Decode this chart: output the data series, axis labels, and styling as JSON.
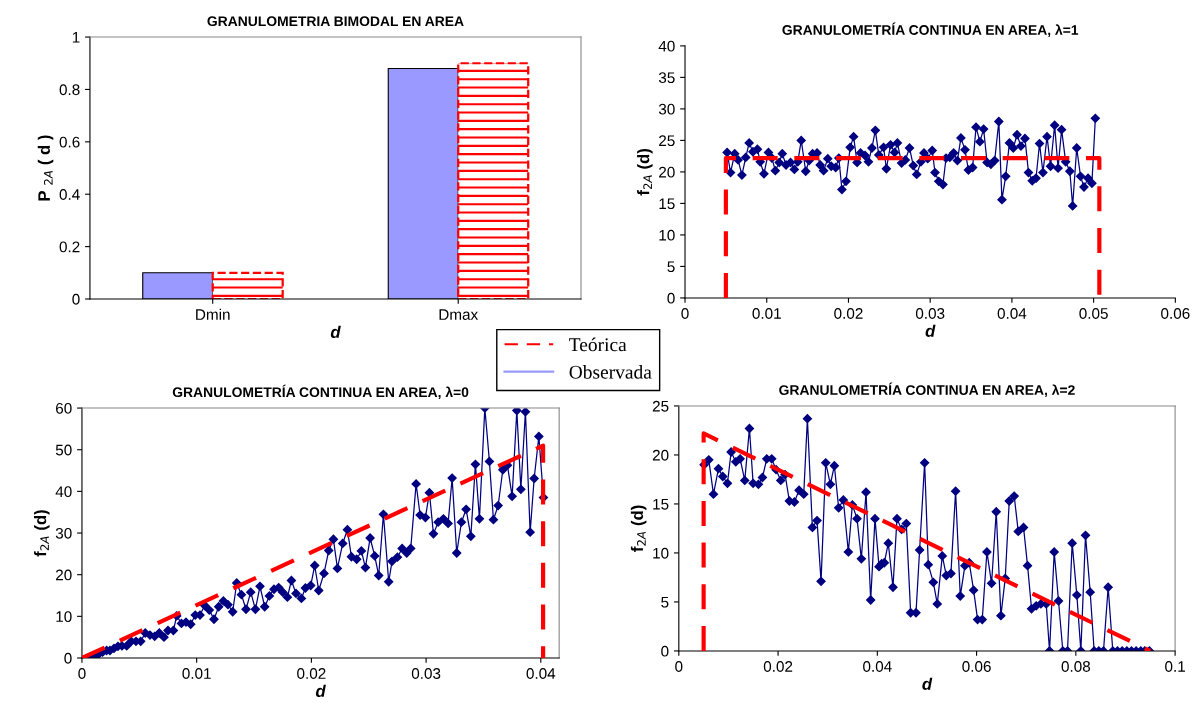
{
  "chart_data": [
    {
      "type": "bar",
      "title": "GRANULOMETRIA BIMODAL EN AREA",
      "xlabel": "d",
      "ylabel": "P $_{2A}$ ( d )",
      "categories": [
        "Dmin",
        "Dmax"
      ],
      "ylim": [
        0,
        1
      ],
      "yticks": [
        0,
        0.2,
        0.4,
        0.6,
        0.8,
        1
      ],
      "grid": false,
      "legend": "bottom right",
      "series": [
        {
          "name": "Observada",
          "color": "#9999ff",
          "line_style": "solid",
          "values": [
            0.1,
            0.88
          ]
        },
        {
          "name": "Teórica",
          "color": "#ff0000",
          "line_style": "dashed",
          "values": [
            0.1,
            0.9
          ]
        }
      ]
    },
    {
      "type": "line",
      "title": "GRANULOMETRÍA CONTINUA EN AREA, λ=1",
      "xlabel": "d",
      "ylabel": "f$_{2A}$ (d)",
      "xlim": [
        0,
        0.06
      ],
      "xticks": [
        0,
        0.01,
        0.02,
        0.03,
        0.04,
        0.05,
        0.06
      ],
      "ylim": [
        0,
        40
      ],
      "yticks": [
        0,
        5,
        10,
        15,
        20,
        25,
        30,
        35,
        40
      ],
      "grid": false,
      "series": [
        {
          "color": "#000080",
          "marker": "diamond",
          "line_style": "solid",
          "x": [
            0.00515,
            0.00557,
            0.00608,
            0.0065,
            0.00696,
            0.00743,
            0.00785,
            0.00831,
            0.00886,
            0.0092,
            0.00966,
            0.01021,
            0.01063,
            0.01105,
            0.01152,
            0.0119,
            0.01236,
            0.01291,
            0.01338,
            0.0138,
            0.01422,
            0.01477,
            0.01519,
            0.01561,
            0.01616,
            0.01654,
            0.01696,
            0.01747,
            0.01789,
            0.01844,
            0.01882,
            0.0192,
            0.0197,
            0.02021,
            0.02063,
            0.02105,
            0.02148,
            0.02203,
            0.02245,
            0.02287,
            0.02329,
            0.02371,
            0.0243,
            0.02464,
            0.02515,
            0.02565,
            0.02599,
            0.0265,
            0.02696,
            0.02747,
            0.02793,
            0.02835,
            0.02886,
            0.02924,
            0.0297,
            0.03025,
            0.03059,
            0.03105,
            0.03156,
            0.03194,
            0.0324,
            0.03287,
            0.03333,
            0.03376,
            0.03426,
            0.03468,
            0.03519,
            0.03561,
            0.03608,
            0.03654,
            0.03696,
            0.03743,
            0.03789,
            0.0384,
            0.03878,
            0.03924,
            0.0397,
            0.04017,
            0.04063,
            0.0411,
            0.0416,
            0.04203,
            0.04249,
            0.04295,
            0.04338,
            0.0438,
            0.0443,
            0.04473,
            0.04523,
            0.04565,
            0.04608,
            0.04658,
            0.04709,
            0.04743,
            0.04793,
            0.0484,
            0.04882,
            0.04932,
            0.04979,
            0.05021
          ],
          "values": [
            23.1,
            19.9,
            22.9,
            21.9,
            19.5,
            22.3,
            24.6,
            23.2,
            23.6,
            21.6,
            19.7,
            23.1,
            22.2,
            20.2,
            21.5,
            22.9,
            21.1,
            21.5,
            20.4,
            21.6,
            25.0,
            20.1,
            21.8,
            22.9,
            23.0,
            21.1,
            20.2,
            22.1,
            20.9,
            20.7,
            22.2,
            17.2,
            18.5,
            23.9,
            25.6,
            21.5,
            23.0,
            22.6,
            21.6,
            23.8,
            26.6,
            22.7,
            23.9,
            20.5,
            24.3,
            23.1,
            24.6,
            21.4,
            21.9,
            23.8,
            21.0,
            19.6,
            21.6,
            23.0,
            22.1,
            23.4,
            19.9,
            18.5,
            18.0,
            22.2,
            22.3,
            23.0,
            21.8,
            25.4,
            23.5,
            20.3,
            20.7,
            27.1,
            24.8,
            26.8,
            21.5,
            21.2,
            21.8,
            28.0,
            15.6,
            19.3,
            24.6,
            23.8,
            25.9,
            24.1,
            25.3,
            19.9,
            18.6,
            19.0,
            24.5,
            19.9,
            25.6,
            20.9,
            27.4,
            20.6,
            26.7,
            21.6,
            20.1,
            14.6,
            23.8,
            19.3,
            17.6,
            19.0,
            18.2,
            28.5
          ]
        },
        {
          "color": "#ff0000",
          "marker": "none",
          "line_style": "dashed",
          "x": [
            0.005,
            0.005,
            0.0507,
            0.0507
          ],
          "values": [
            0,
            22.2,
            22.2,
            0
          ]
        }
      ]
    },
    {
      "type": "line",
      "title": "GRANULOMETRÍA CONTINUA EN AREA, λ=0",
      "xlabel": "d",
      "ylabel": "f$_{2A}$ (d)",
      "xlim": [
        0,
        0.0416
      ],
      "xticks": [
        0,
        0.01,
        0.02,
        0.03,
        0.04
      ],
      "ylim": [
        0,
        60
      ],
      "yticks": [
        0,
        10,
        20,
        30,
        40,
        50,
        60
      ],
      "grid": false,
      "series": [
        {
          "color": "#000080",
          "marker": "diamond",
          "line_style": "solid",
          "x": [
            0.0007,
            0.00108,
            0.00145,
            0.0018,
            0.00215,
            0.00244,
            0.00279,
            0.00314,
            0.00349,
            0.0039,
            0.0043,
            0.00471,
            0.00512,
            0.00552,
            0.00593,
            0.00634,
            0.00674,
            0.00715,
            0.0075,
            0.00797,
            0.00826,
            0.00867,
            0.00907,
            0.00948,
            0.00988,
            0.01029,
            0.0107,
            0.0111,
            0.01151,
            0.01192,
            0.01233,
            0.01273,
            0.01314,
            0.01349,
            0.0139,
            0.0143,
            0.01471,
            0.01512,
            0.01552,
            0.01593,
            0.01634,
            0.01674,
            0.01715,
            0.0175,
            0.01791,
            0.01826,
            0.01866,
            0.01913,
            0.01948,
            0.01994,
            0.02029,
            0.02064,
            0.0211,
            0.02151,
            0.02192,
            0.02227,
            0.02273,
            0.02314,
            0.02349,
            0.02395,
            0.02436,
            0.02471,
            0.02512,
            0.02552,
            0.02587,
            0.02628,
            0.02674,
            0.02703,
            0.0275,
            0.02791,
            0.02831,
            0.02866,
            0.02913,
            0.02948,
            0.02994,
            0.03029,
            0.03064,
            0.03105,
            0.03151,
            0.03192,
            0.03227,
            0.03267,
            0.03308,
            0.03349,
            0.0339,
            0.0343,
            0.03465,
            0.03512,
            0.03552,
            0.03587,
            0.03628,
            0.03669,
            0.03709,
            0.0375,
            0.03791,
            0.03826,
            0.03866,
            0.03907,
            0.03942,
            0.03983,
            0.04023
          ],
          "values": [
            0.2,
            0.5,
            0.9,
            1.4,
            1.8,
            1.8,
            2.3,
            2.8,
            2.9,
            2.9,
            4.0,
            4.0,
            4.0,
            6.0,
            5.5,
            5.2,
            6.0,
            5.0,
            6.6,
            6.6,
            10.1,
            8.3,
            8.6,
            8.1,
            10.3,
            10.3,
            12.6,
            11.5,
            9.3,
            12.3,
            13.7,
            12.8,
            11.1,
            18.0,
            15.2,
            11.7,
            15.8,
            11.7,
            17.2,
            12.3,
            14.9,
            16.5,
            16.9,
            15.8,
            14.6,
            18.6,
            15.5,
            14.3,
            16.8,
            17.4,
            22.2,
            16.2,
            20.3,
            25.8,
            28.5,
            21.5,
            27.5,
            30.8,
            24.3,
            23.7,
            25.7,
            21.7,
            28.8,
            24.5,
            19.8,
            34.5,
            18.3,
            23.2,
            24.2,
            26.3,
            25.2,
            26.3,
            41.8,
            34.3,
            33.7,
            39.7,
            29.8,
            32.6,
            33.4,
            32.3,
            43.2,
            25.2,
            32.6,
            35.7,
            29.2,
            46.5,
            33.4,
            60,
            47.2,
            33.2,
            36.6,
            45.2,
            46.3,
            38.8,
            59.4,
            40.5,
            59.1,
            30.2,
            43.1,
            53.2,
            38.5
          ]
        },
        {
          "color": "#ff0000",
          "marker": "none",
          "line_style": "dashed",
          "x": [
            0,
            0.0402,
            0.0402
          ],
          "values": [
            0,
            51,
            0
          ]
        }
      ]
    },
    {
      "type": "line",
      "title": "GRANULOMETRÍA CONTINUA EN AREA, λ=2",
      "xlabel": "d",
      "ylabel": "f$_{2A}$ (d)",
      "xlim": [
        0,
        0.1
      ],
      "xticks": [
        0,
        0.02,
        0.04,
        0.06,
        0.08,
        0.1
      ],
      "ylim": [
        0,
        25
      ],
      "yticks": [
        0,
        5,
        10,
        15,
        20,
        25
      ],
      "grid": false,
      "series": [
        {
          "color": "#000080",
          "marker": "diamond",
          "line_style": "solid",
          "x": [
            0.0051,
            0.00604,
            0.00698,
            0.00799,
            0.00886,
            0.0098,
            0.01054,
            0.01148,
            0.01235,
            0.01329,
            0.01423,
            0.01497,
            0.01604,
            0.01685,
            0.01772,
            0.01872,
            0.0196,
            0.02054,
            0.02141,
            0.02228,
            0.02329,
            0.02423,
            0.02517,
            0.02591,
            0.02691,
            0.02785,
            0.02866,
            0.0296,
            0.03054,
            0.03134,
            0.03221,
            0.03315,
            0.03416,
            0.03497,
            0.03591,
            0.03678,
            0.03772,
            0.03866,
            0.03953,
            0.04034,
            0.04087,
            0.04141,
            0.04221,
            0.04315,
            0.04396,
            0.0449,
            0.04584,
            0.04671,
            0.04779,
            0.04852,
            0.04953,
            0.05027,
            0.05128,
            0.05208,
            0.05309,
            0.05389,
            0.05483,
            0.05577,
            0.05671,
            0.05765,
            0.05852,
            0.0594,
            0.0602,
            0.06114,
            0.06208,
            0.06302,
            0.06396,
            0.0649,
            0.06577,
            0.06658,
            0.06758,
            0.06839,
            0.06946,
            0.07027,
            0.07107,
            0.07201,
            0.07295,
            0.07403,
            0.0747,
            0.07564,
            0.07651,
            0.07738,
            0.07832,
            0.07926,
            0.0802,
            0.08101,
            0.08195,
            0.08289,
            0.08369,
            0.08463,
            0.08557,
            0.08651,
            0.08745,
            0.08839,
            0.08933,
            0.09027,
            0.09121,
            0.09215,
            0.09309,
            0.09389,
            0.09483
          ],
          "values": [
            19.0,
            19.5,
            16.0,
            18.6,
            17.8,
            17.1,
            20.3,
            19.3,
            19.6,
            17.4,
            22.7,
            17.1,
            17.0,
            17.7,
            19.6,
            19.6,
            18.5,
            17.4,
            18.0,
            15.3,
            15.2,
            16.4,
            16.0,
            23.7,
            12.6,
            13.3,
            7.1,
            19.2,
            17.0,
            18.9,
            14.6,
            15.4,
            10.1,
            14.9,
            13.5,
            9.4,
            16.2,
            5.2,
            13.5,
            8.6,
            8.9,
            9.0,
            11.0,
            6.5,
            13.5,
            12.4,
            13.0,
            3.9,
            3.9,
            10.3,
            19.2,
            8.8,
            7.0,
            4.8,
            9.7,
            7.7,
            7.9,
            16.3,
            5.6,
            8.7,
            9.0,
            6.2,
            3.2,
            3.2,
            10.1,
            6.9,
            14.2,
            3.6,
            7.4,
            15.3,
            15.8,
            12.2,
            12.6,
            8.7,
            4.3,
            4.6,
            4.8,
            4.8,
            0,
            10.1,
            5.1,
            0,
            0,
            11.0,
            5.7,
            0,
            11.8,
            6.0,
            0,
            0,
            0,
            6.5,
            0,
            0,
            0,
            0,
            0,
            0,
            0,
            0,
            0
          ]
        },
        {
          "color": "#ff0000",
          "marker": "none",
          "line_style": "dashed",
          "x": [
            0.005,
            0.005,
            0.095
          ],
          "values": [
            0,
            22.2,
            0
          ]
        }
      ]
    }
  ]
}
